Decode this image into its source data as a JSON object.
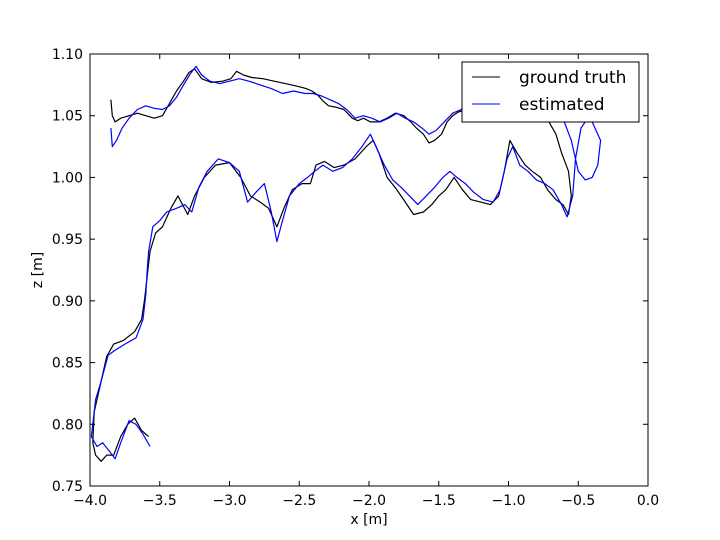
{
  "chart_data": {
    "type": "line",
    "xlabel": "x [m]",
    "ylabel": "z [m]",
    "xlim": [
      -4.0,
      0.0
    ],
    "ylim": [
      0.75,
      1.1
    ],
    "x_ticks": [
      -4.0,
      -3.5,
      -3.0,
      -2.5,
      -2.0,
      -1.5,
      -1.0,
      -0.5,
      0.0
    ],
    "x_tick_labels": [
      "−4.0",
      "−3.5",
      "−3.0",
      "−2.5",
      "−2.0",
      "−1.5",
      "−1.0",
      "−0.5",
      "0.0"
    ],
    "y_ticks": [
      0.75,
      0.8,
      0.85,
      0.9,
      0.95,
      1.0,
      1.05,
      1.1
    ],
    "y_tick_labels": [
      "0.75",
      "0.80",
      "0.85",
      "0.90",
      "0.95",
      "1.00",
      "1.05",
      "1.10"
    ],
    "grid": false,
    "legend_position": "top-right",
    "series": [
      {
        "name": "ground truth",
        "color": "#000000",
        "points": [
          [
            -3.58,
            0.79
          ],
          [
            -3.63,
            0.795
          ],
          [
            -3.68,
            0.805
          ],
          [
            -3.73,
            0.8
          ],
          [
            -3.78,
            0.79
          ],
          [
            -3.83,
            0.775
          ],
          [
            -3.88,
            0.775
          ],
          [
            -3.92,
            0.77
          ],
          [
            -3.96,
            0.775
          ],
          [
            -3.98,
            0.785
          ],
          [
            -3.97,
            0.81
          ],
          [
            -3.93,
            0.83
          ],
          [
            -3.88,
            0.855
          ],
          [
            -3.83,
            0.865
          ],
          [
            -3.76,
            0.868
          ],
          [
            -3.68,
            0.875
          ],
          [
            -3.63,
            0.885
          ],
          [
            -3.61,
            0.9
          ],
          [
            -3.59,
            0.92
          ],
          [
            -3.57,
            0.94
          ],
          [
            -3.53,
            0.955
          ],
          [
            -3.48,
            0.96
          ],
          [
            -3.42,
            0.975
          ],
          [
            -3.37,
            0.985
          ],
          [
            -3.3,
            0.97
          ],
          [
            -3.25,
            0.985
          ],
          [
            -3.18,
            1.0
          ],
          [
            -3.1,
            1.01
          ],
          [
            -3.0,
            1.012
          ],
          [
            -2.92,
            1.0
          ],
          [
            -2.85,
            0.985
          ],
          [
            -2.78,
            0.98
          ],
          [
            -2.72,
            0.975
          ],
          [
            -2.66,
            0.96
          ],
          [
            -2.61,
            0.975
          ],
          [
            -2.55,
            0.99
          ],
          [
            -2.48,
            0.995
          ],
          [
            -2.42,
            0.995
          ],
          [
            -2.38,
            1.01
          ],
          [
            -2.32,
            1.013
          ],
          [
            -2.25,
            1.008
          ],
          [
            -2.18,
            1.01
          ],
          [
            -2.1,
            1.015
          ],
          [
            -2.02,
            1.025
          ],
          [
            -1.97,
            1.03
          ],
          [
            -1.93,
            1.02
          ],
          [
            -1.87,
            1.0
          ],
          [
            -1.8,
            0.99
          ],
          [
            -1.74,
            0.98
          ],
          [
            -1.68,
            0.97
          ],
          [
            -1.61,
            0.972
          ],
          [
            -1.55,
            0.978
          ],
          [
            -1.5,
            0.985
          ],
          [
            -1.45,
            0.99
          ],
          [
            -1.39,
            1.0
          ],
          [
            -1.33,
            0.99
          ],
          [
            -1.27,
            0.982
          ],
          [
            -1.2,
            0.98
          ],
          [
            -1.13,
            0.978
          ],
          [
            -1.07,
            0.985
          ],
          [
            -1.03,
            1.005
          ],
          [
            -0.99,
            1.03
          ],
          [
            -0.94,
            1.02
          ],
          [
            -0.88,
            1.01
          ],
          [
            -0.83,
            1.005
          ],
          [
            -0.77,
            1.0
          ],
          [
            -0.72,
            0.99
          ],
          [
            -0.66,
            0.982
          ],
          [
            -0.61,
            0.978
          ],
          [
            -0.57,
            0.97
          ],
          [
            -0.55,
            0.985
          ],
          [
            -0.57,
            1.005
          ],
          [
            -0.62,
            1.02
          ],
          [
            -0.66,
            1.035
          ],
          [
            -0.71,
            1.045
          ],
          [
            -0.77,
            1.05
          ],
          [
            -0.84,
            1.055
          ],
          [
            -0.92,
            1.058
          ],
          [
            -1.0,
            1.06
          ],
          [
            -1.08,
            1.058
          ],
          [
            -1.15,
            1.06
          ],
          [
            -1.22,
            1.058
          ],
          [
            -1.3,
            1.055
          ],
          [
            -1.36,
            1.053
          ],
          [
            -1.4,
            1.05
          ],
          [
            -1.44,
            1.045
          ],
          [
            -1.48,
            1.035
          ],
          [
            -1.53,
            1.03
          ],
          [
            -1.57,
            1.028
          ],
          [
            -1.61,
            1.035
          ],
          [
            -1.66,
            1.04
          ],
          [
            -1.7,
            1.045
          ],
          [
            -1.75,
            1.05
          ],
          [
            -1.81,
            1.052
          ],
          [
            -1.87,
            1.048
          ],
          [
            -1.93,
            1.045
          ],
          [
            -1.99,
            1.045
          ],
          [
            -2.04,
            1.048
          ],
          [
            -2.08,
            1.046
          ],
          [
            -2.12,
            1.048
          ],
          [
            -2.18,
            1.055
          ],
          [
            -2.24,
            1.057
          ],
          [
            -2.29,
            1.058
          ],
          [
            -2.33,
            1.062
          ],
          [
            -2.37,
            1.067
          ],
          [
            -2.41,
            1.07
          ],
          [
            -2.45,
            1.072
          ],
          [
            -2.52,
            1.074
          ],
          [
            -2.6,
            1.076
          ],
          [
            -2.68,
            1.078
          ],
          [
            -2.76,
            1.08
          ],
          [
            -2.84,
            1.081
          ],
          [
            -2.9,
            1.083
          ],
          [
            -2.95,
            1.086
          ],
          [
            -2.99,
            1.08
          ],
          [
            -3.05,
            1.078
          ],
          [
            -3.13,
            1.077
          ],
          [
            -3.2,
            1.08
          ],
          [
            -3.25,
            1.088
          ],
          [
            -3.29,
            1.085
          ],
          [
            -3.33,
            1.078
          ],
          [
            -3.38,
            1.07
          ],
          [
            -3.43,
            1.06
          ],
          [
            -3.48,
            1.05
          ],
          [
            -3.54,
            1.048
          ],
          [
            -3.6,
            1.05
          ],
          [
            -3.66,
            1.052
          ],
          [
            -3.72,
            1.05
          ],
          [
            -3.78,
            1.048
          ],
          [
            -3.82,
            1.045
          ],
          [
            -3.84,
            1.05
          ],
          [
            -3.85,
            1.063
          ]
        ]
      },
      {
        "name": "estimated",
        "color": "#0000ff",
        "points": [
          [
            -3.57,
            0.782
          ],
          [
            -3.62,
            0.792
          ],
          [
            -3.67,
            0.8
          ],
          [
            -3.72,
            0.803
          ],
          [
            -3.78,
            0.785
          ],
          [
            -3.82,
            0.772
          ],
          [
            -3.86,
            0.778
          ],
          [
            -3.91,
            0.785
          ],
          [
            -3.95,
            0.782
          ],
          [
            -3.99,
            0.79
          ],
          [
            -3.96,
            0.82
          ],
          [
            -3.92,
            0.835
          ],
          [
            -3.87,
            0.856
          ],
          [
            -3.82,
            0.86
          ],
          [
            -3.75,
            0.865
          ],
          [
            -3.67,
            0.87
          ],
          [
            -3.62,
            0.885
          ],
          [
            -3.6,
            0.905
          ],
          [
            -3.59,
            0.925
          ],
          [
            -3.58,
            0.94
          ],
          [
            -3.55,
            0.96
          ],
          [
            -3.5,
            0.965
          ],
          [
            -3.45,
            0.972
          ],
          [
            -3.38,
            0.975
          ],
          [
            -3.32,
            0.978
          ],
          [
            -3.27,
            0.972
          ],
          [
            -3.22,
            0.992
          ],
          [
            -3.16,
            1.005
          ],
          [
            -3.08,
            1.015
          ],
          [
            -3.0,
            1.012
          ],
          [
            -2.93,
            1.005
          ],
          [
            -2.87,
            0.98
          ],
          [
            -2.81,
            0.988
          ],
          [
            -2.75,
            0.995
          ],
          [
            -2.7,
            0.972
          ],
          [
            -2.66,
            0.948
          ],
          [
            -2.62,
            0.965
          ],
          [
            -2.57,
            0.985
          ],
          [
            -2.5,
            0.995
          ],
          [
            -2.44,
            1.0
          ],
          [
            -2.39,
            1.005
          ],
          [
            -2.33,
            1.01
          ],
          [
            -2.26,
            1.005
          ],
          [
            -2.19,
            1.008
          ],
          [
            -2.12,
            1.015
          ],
          [
            -2.05,
            1.025
          ],
          [
            -1.99,
            1.035
          ],
          [
            -1.95,
            1.025
          ],
          [
            -1.89,
            1.01
          ],
          [
            -1.83,
            0.998
          ],
          [
            -1.77,
            0.992
          ],
          [
            -1.71,
            0.985
          ],
          [
            -1.65,
            0.978
          ],
          [
            -1.59,
            0.985
          ],
          [
            -1.53,
            0.992
          ],
          [
            -1.47,
            1.0
          ],
          [
            -1.42,
            1.005
          ],
          [
            -1.37,
            1.0
          ],
          [
            -1.31,
            0.995
          ],
          [
            -1.25,
            0.988
          ],
          [
            -1.18,
            0.982
          ],
          [
            -1.11,
            0.98
          ],
          [
            -1.06,
            0.99
          ],
          [
            -1.01,
            1.015
          ],
          [
            -0.97,
            1.025
          ],
          [
            -0.92,
            1.01
          ],
          [
            -0.86,
            1.005
          ],
          [
            -0.8,
            0.998
          ],
          [
            -0.74,
            0.995
          ],
          [
            -0.68,
            0.99
          ],
          [
            -0.62,
            0.978
          ],
          [
            -0.58,
            0.968
          ],
          [
            -0.54,
            0.985
          ],
          [
            -0.52,
            1.015
          ],
          [
            -0.48,
            1.04
          ],
          [
            -0.42,
            1.05
          ],
          [
            -0.38,
            1.04
          ],
          [
            -0.34,
            1.03
          ],
          [
            -0.36,
            1.01
          ],
          [
            -0.4,
            1.0
          ],
          [
            -0.45,
            0.998
          ],
          [
            -0.5,
            1.005
          ],
          [
            -0.55,
            1.03
          ],
          [
            -0.6,
            1.045
          ],
          [
            -0.66,
            1.05
          ],
          [
            -0.74,
            1.052
          ],
          [
            -0.82,
            1.055
          ],
          [
            -0.9,
            1.06
          ],
          [
            -0.98,
            1.062
          ],
          [
            -1.06,
            1.06
          ],
          [
            -1.14,
            1.062
          ],
          [
            -1.21,
            1.065
          ],
          [
            -1.28,
            1.06
          ],
          [
            -1.34,
            1.055
          ],
          [
            -1.4,
            1.052
          ],
          [
            -1.46,
            1.045
          ],
          [
            -1.52,
            1.038
          ],
          [
            -1.57,
            1.035
          ],
          [
            -1.62,
            1.04
          ],
          [
            -1.68,
            1.045
          ],
          [
            -1.74,
            1.048
          ],
          [
            -1.8,
            1.052
          ],
          [
            -1.86,
            1.048
          ],
          [
            -1.92,
            1.045
          ],
          [
            -1.98,
            1.048
          ],
          [
            -2.04,
            1.05
          ],
          [
            -2.1,
            1.048
          ],
          [
            -2.16,
            1.055
          ],
          [
            -2.22,
            1.06
          ],
          [
            -2.28,
            1.063
          ],
          [
            -2.34,
            1.066
          ],
          [
            -2.4,
            1.068
          ],
          [
            -2.46,
            1.068
          ],
          [
            -2.54,
            1.07
          ],
          [
            -2.62,
            1.068
          ],
          [
            -2.7,
            1.072
          ],
          [
            -2.78,
            1.075
          ],
          [
            -2.86,
            1.078
          ],
          [
            -2.93,
            1.08
          ],
          [
            -3.0,
            1.078
          ],
          [
            -3.07,
            1.076
          ],
          [
            -3.14,
            1.078
          ],
          [
            -3.2,
            1.083
          ],
          [
            -3.24,
            1.09
          ],
          [
            -3.28,
            1.084
          ],
          [
            -3.33,
            1.075
          ],
          [
            -3.38,
            1.065
          ],
          [
            -3.43,
            1.058
          ],
          [
            -3.48,
            1.055
          ],
          [
            -3.54,
            1.056
          ],
          [
            -3.6,
            1.058
          ],
          [
            -3.66,
            1.055
          ],
          [
            -3.72,
            1.048
          ],
          [
            -3.77,
            1.04
          ],
          [
            -3.81,
            1.03
          ],
          [
            -3.84,
            1.025
          ],
          [
            -3.85,
            1.04
          ]
        ]
      }
    ]
  }
}
